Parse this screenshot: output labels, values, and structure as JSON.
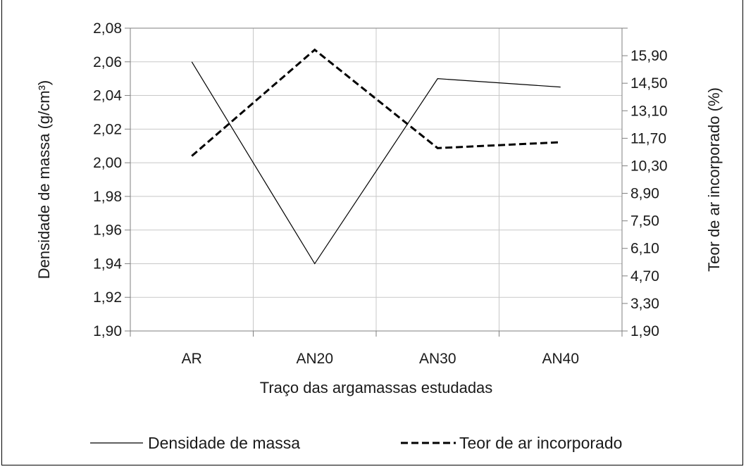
{
  "chart_data": {
    "type": "line",
    "categories": [
      "AR",
      "AN20",
      "AN30",
      "AN40"
    ],
    "xlabel": "Traço das argamassas estudadas",
    "ylabel_left": "Densidade de massa (g/cm³)",
    "ylabel_right": "Teor de ar incorporado (%)",
    "ylim_left": [
      1.9,
      2.08
    ],
    "ylim_right": [
      1.9,
      17.3
    ],
    "yticks_left": [
      "1,90",
      "1,92",
      "1,94",
      "1,96",
      "1,98",
      "2,00",
      "2,02",
      "2,04",
      "2,06",
      "2,08"
    ],
    "yticks_right": [
      "1,90",
      "3,30",
      "4,70",
      "6,10",
      "7,50",
      "8,90",
      "10,30",
      "11,70",
      "13,10",
      "14,50",
      "15,90"
    ],
    "grid": true,
    "legend_position": "bottom",
    "series": [
      {
        "name": "Densidade de massa",
        "axis": "left",
        "style": "solid",
        "values": [
          2.06,
          1.94,
          2.05,
          2.045
        ]
      },
      {
        "name": "Teor de ar incorporado",
        "axis": "right",
        "style": "dashed",
        "values": [
          10.8,
          16.2,
          11.2,
          11.5
        ]
      }
    ]
  },
  "colors": {
    "line": "#000000",
    "grid": "#c8c8c8",
    "frame": "#7f7f7f"
  }
}
